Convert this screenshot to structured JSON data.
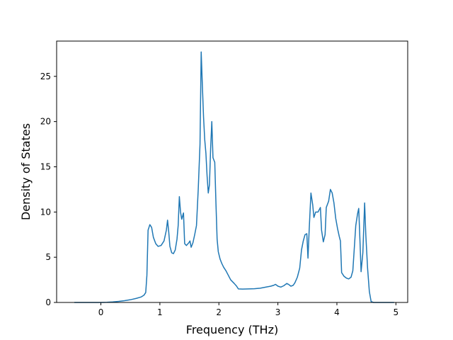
{
  "chart_data": {
    "type": "line",
    "title": "",
    "xlabel": "Frequency (THz)",
    "ylabel": "Density of States",
    "xlim": [
      -0.75,
      5.2
    ],
    "ylim": [
      0,
      28.9
    ],
    "xticks": [
      0,
      1,
      2,
      3,
      4,
      5
    ],
    "yticks": [
      0,
      5,
      10,
      15,
      20,
      25
    ],
    "grid": false,
    "legend": "none",
    "series": [
      {
        "color": "#1f77b4",
        "points": [
          [
            -0.45,
            0.0
          ],
          [
            0.0,
            0.0
          ],
          [
            0.1,
            0.02
          ],
          [
            0.2,
            0.06
          ],
          [
            0.3,
            0.12
          ],
          [
            0.4,
            0.2
          ],
          [
            0.5,
            0.3
          ],
          [
            0.6,
            0.45
          ],
          [
            0.68,
            0.6
          ],
          [
            0.73,
            0.8
          ],
          [
            0.76,
            1.1
          ],
          [
            0.78,
            3.0
          ],
          [
            0.8,
            8.0
          ],
          [
            0.83,
            8.6
          ],
          [
            0.86,
            8.3
          ],
          [
            0.89,
            7.2
          ],
          [
            0.93,
            6.5
          ],
          [
            0.97,
            6.2
          ],
          [
            1.02,
            6.3
          ],
          [
            1.07,
            6.8
          ],
          [
            1.11,
            8.0
          ],
          [
            1.13,
            9.1
          ],
          [
            1.15,
            7.8
          ],
          [
            1.17,
            6.2
          ],
          [
            1.2,
            5.5
          ],
          [
            1.23,
            5.4
          ],
          [
            1.26,
            5.8
          ],
          [
            1.29,
            7.0
          ],
          [
            1.31,
            8.5
          ],
          [
            1.33,
            11.7
          ],
          [
            1.35,
            10.0
          ],
          [
            1.37,
            9.2
          ],
          [
            1.4,
            9.9
          ],
          [
            1.42,
            6.5
          ],
          [
            1.45,
            6.3
          ],
          [
            1.49,
            6.6
          ],
          [
            1.51,
            6.8
          ],
          [
            1.53,
            6.1
          ],
          [
            1.56,
            6.6
          ],
          [
            1.59,
            7.5
          ],
          [
            1.62,
            8.5
          ],
          [
            1.65,
            12.5
          ],
          [
            1.68,
            17.5
          ],
          [
            1.7,
            27.7
          ],
          [
            1.72,
            24.0
          ],
          [
            1.74,
            20.5
          ],
          [
            1.76,
            18.0
          ],
          [
            1.78,
            16.5
          ],
          [
            1.8,
            14.0
          ],
          [
            1.82,
            12.1
          ],
          [
            1.84,
            13.0
          ],
          [
            1.86,
            17.0
          ],
          [
            1.88,
            20.0
          ],
          [
            1.9,
            16.0
          ],
          [
            1.93,
            15.5
          ],
          [
            1.95,
            11.0
          ],
          [
            1.97,
            7.0
          ],
          [
            1.99,
            5.6
          ],
          [
            2.02,
            4.8
          ],
          [
            2.05,
            4.3
          ],
          [
            2.08,
            3.9
          ],
          [
            2.12,
            3.5
          ],
          [
            2.16,
            3.0
          ],
          [
            2.2,
            2.5
          ],
          [
            2.26,
            2.1
          ],
          [
            2.3,
            1.8
          ],
          [
            2.33,
            1.5
          ],
          [
            2.4,
            1.48
          ],
          [
            2.5,
            1.5
          ],
          [
            2.6,
            1.52
          ],
          [
            2.7,
            1.58
          ],
          [
            2.8,
            1.7
          ],
          [
            2.88,
            1.8
          ],
          [
            2.93,
            1.9
          ],
          [
            2.96,
            2.0
          ],
          [
            3.0,
            1.8
          ],
          [
            3.05,
            1.7
          ],
          [
            3.1,
            1.85
          ],
          [
            3.15,
            2.1
          ],
          [
            3.18,
            2.0
          ],
          [
            3.22,
            1.8
          ],
          [
            3.26,
            1.9
          ],
          [
            3.29,
            2.2
          ],
          [
            3.33,
            2.8
          ],
          [
            3.37,
            3.8
          ],
          [
            3.4,
            5.8
          ],
          [
            3.43,
            6.8
          ],
          [
            3.46,
            7.5
          ],
          [
            3.49,
            7.6
          ],
          [
            3.51,
            4.9
          ],
          [
            3.53,
            8.0
          ],
          [
            3.56,
            12.1
          ],
          [
            3.59,
            10.8
          ],
          [
            3.61,
            9.4
          ],
          [
            3.64,
            10.0
          ],
          [
            3.68,
            10.0
          ],
          [
            3.72,
            10.5
          ],
          [
            3.74,
            8.0
          ],
          [
            3.77,
            6.7
          ],
          [
            3.8,
            7.5
          ],
          [
            3.82,
            10.5
          ],
          [
            3.86,
            11.2
          ],
          [
            3.89,
            12.5
          ],
          [
            3.92,
            12.1
          ],
          [
            3.95,
            11.0
          ],
          [
            3.98,
            9.3
          ],
          [
            4.01,
            8.2
          ],
          [
            4.04,
            7.3
          ],
          [
            4.06,
            6.8
          ],
          [
            4.08,
            3.3
          ],
          [
            4.12,
            2.9
          ],
          [
            4.16,
            2.7
          ],
          [
            4.2,
            2.6
          ],
          [
            4.24,
            2.8
          ],
          [
            4.27,
            3.5
          ],
          [
            4.3,
            6.5
          ],
          [
            4.32,
            8.5
          ],
          [
            4.35,
            9.8
          ],
          [
            4.37,
            10.4
          ],
          [
            4.39,
            7.0
          ],
          [
            4.41,
            3.4
          ],
          [
            4.44,
            5.5
          ],
          [
            4.47,
            11.0
          ],
          [
            4.49,
            7.5
          ],
          [
            4.52,
            3.8
          ],
          [
            4.55,
            1.2
          ],
          [
            4.58,
            0.1
          ],
          [
            4.62,
            0.0
          ],
          [
            4.97,
            0.0
          ]
        ]
      }
    ]
  }
}
